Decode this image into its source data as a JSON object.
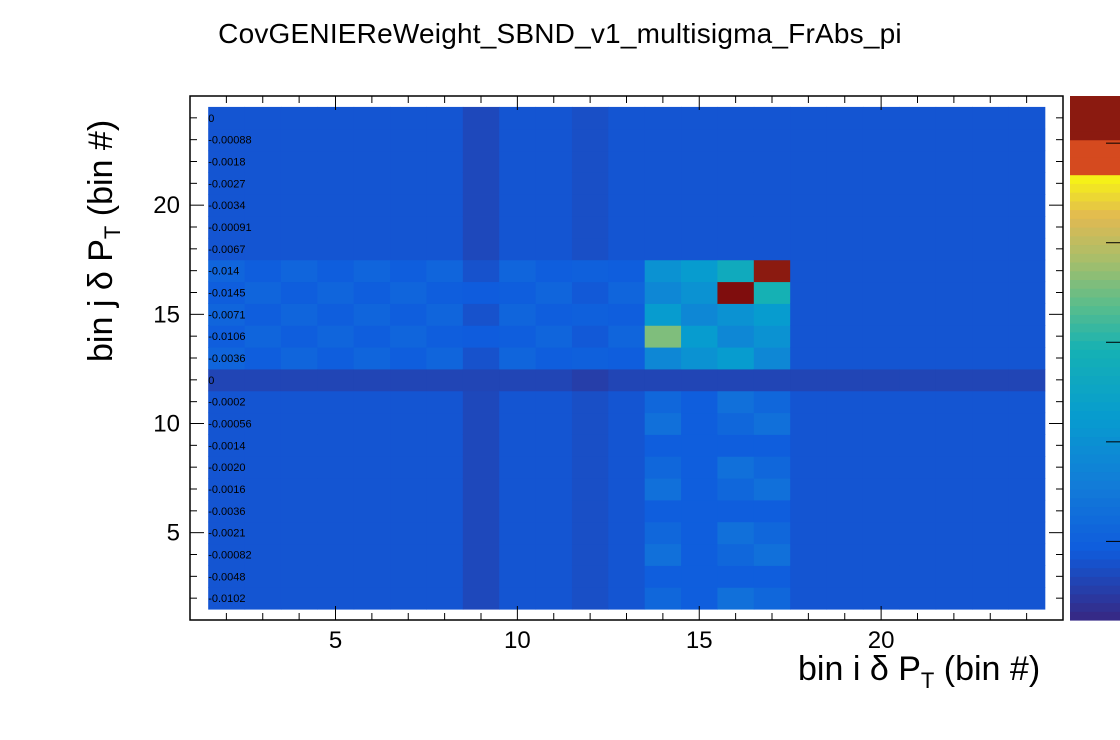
{
  "title": "CovGENIEReWeight_SBND_v1_multisigma_FrAbs_pi",
  "xlabel": "bin i δ P",
  "xlabel_sub": "T",
  "xlabel_tail": " (bin #)",
  "ylabel": "bin j δ P",
  "ylabel_sub": "T",
  "ylabel_tail": " (bin #)",
  "chart_data": {
    "type": "heatmap",
    "title": "CovGENIEReWeight_SBND_v1_multisigma_FrAbs_pi",
    "xlabel": "bin i δ P_T (bin #)",
    "ylabel": "bin j δ P_T (bin #)",
    "xlim": [
      1,
      25
    ],
    "ylim": [
      1,
      25
    ],
    "xticks": [
      5,
      10,
      15,
      20
    ],
    "yticks": [
      5,
      10,
      15,
      20
    ],
    "colorbar": true,
    "palette": "kBird",
    "grid": false,
    "rows_top_to_bottom_first_label": [
      "0",
      "-0.00088",
      "-0.0018",
      "-0.0027",
      "-0.0034",
      "-0.00091",
      "-0.0067",
      "-0.014",
      "-0.0145",
      "-0.0071",
      "-0.0106",
      "-0.0036",
      "0",
      "-0.0002",
      "-0.00056",
      "-0.0014",
      "-0.0020",
      "-0.0016",
      "-0.0036",
      "-0.0021",
      "-0.00082",
      "-0.0048",
      "-0.0102"
    ],
    "highlights": [
      {
        "x": 16,
        "y": 16,
        "level": 1.0
      },
      {
        "x": 17,
        "y": 17,
        "level": 0.95
      },
      {
        "x": 17,
        "y": 16,
        "level": 0.6
      },
      {
        "x": 14,
        "y": 14,
        "level": 0.75
      },
      {
        "x": 16,
        "y": 17,
        "level": 0.55
      }
    ]
  }
}
